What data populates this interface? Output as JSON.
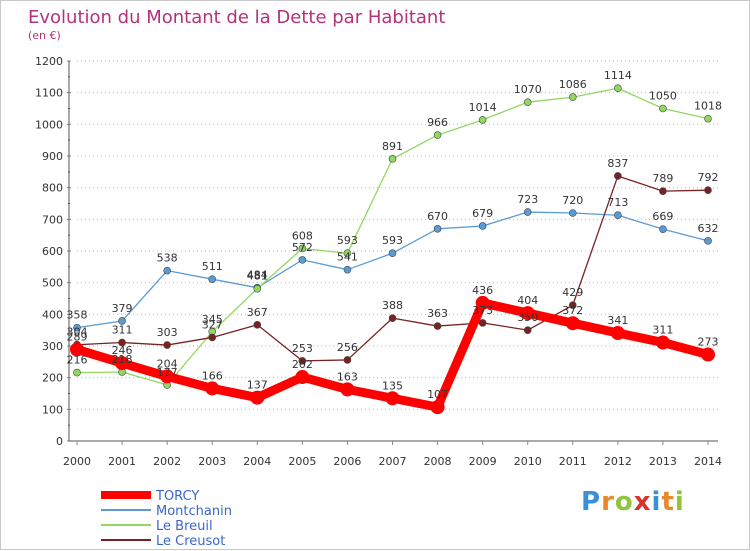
{
  "chart_data": {
    "type": "line",
    "title": "Evolution du Montant de la Dette par Habitant",
    "subtitle": "(en €)",
    "x": [
      "2000",
      "2001",
      "2002",
      "2003",
      "2004",
      "2005",
      "2006",
      "2007",
      "2008",
      "2009",
      "2010",
      "2011",
      "2012",
      "2013",
      "2014"
    ],
    "ylim": [
      0,
      1200
    ],
    "yticks": [
      0,
      100,
      200,
      300,
      400,
      500,
      600,
      700,
      800,
      900,
      1000,
      1100,
      1200
    ],
    "grid": "horizontal-dotted",
    "legend_position": "bottom-left",
    "series": [
      {
        "name": "TORCY",
        "color": "#ff0000",
        "values": [
          289,
          246,
          204,
          166,
          137,
          202,
          163,
          135,
          107,
          436,
          404,
          372,
          341,
          311,
          273
        ],
        "labels": [
          "289",
          "246",
          "204",
          "166",
          "137",
          "202",
          "163",
          "135",
          "107",
          "436",
          "404",
          "372",
          "341",
          "311",
          "273"
        ]
      },
      {
        "name": "Montchanin",
        "color": "#5b9bd5",
        "values": [
          358,
          379,
          538,
          511,
          484,
          572,
          541,
          593,
          670,
          679,
          723,
          720,
          713,
          669,
          632
        ],
        "labels": [
          "358",
          "379",
          "538",
          "511",
          "484",
          "572",
          "541",
          "593",
          "670",
          "679",
          "723",
          "720",
          "713",
          "669",
          "632"
        ]
      },
      {
        "name": "Le Breuil",
        "color": "#90d860",
        "values": [
          216,
          218,
          177,
          345,
          481,
          608,
          593,
          891,
          966,
          1014,
          1070,
          1086,
          1114,
          1050,
          1018
        ],
        "labels": [
          "216",
          "218",
          "177",
          "345",
          "481",
          "608",
          "593",
          "891",
          "966",
          "1014",
          "1070",
          "1086",
          "1114",
          "1050",
          "1018"
        ]
      },
      {
        "name": "Le Creusot",
        "color": "#7a2222",
        "values": [
          304,
          311,
          303,
          327,
          367,
          253,
          256,
          388,
          363,
          373,
          350,
          429,
          837,
          789,
          792
        ],
        "labels": [
          "304",
          "311",
          "303",
          "327",
          "367",
          "253",
          "256",
          "388",
          "363",
          "373",
          "350",
          "429",
          "837",
          "789",
          "792"
        ]
      }
    ]
  },
  "logo": {
    "text": "Proxiti",
    "letters": [
      {
        "ch": "P",
        "color": "#3b8fd9"
      },
      {
        "ch": "r",
        "color": "#e8882a"
      },
      {
        "ch": "o",
        "color": "#8fc43c"
      },
      {
        "ch": "x",
        "color": "#d8342c"
      },
      {
        "ch": "i",
        "color": "#3b8fd9"
      },
      {
        "ch": "t",
        "color": "#e8882a"
      },
      {
        "ch": "i",
        "color": "#8fc43c"
      }
    ]
  }
}
